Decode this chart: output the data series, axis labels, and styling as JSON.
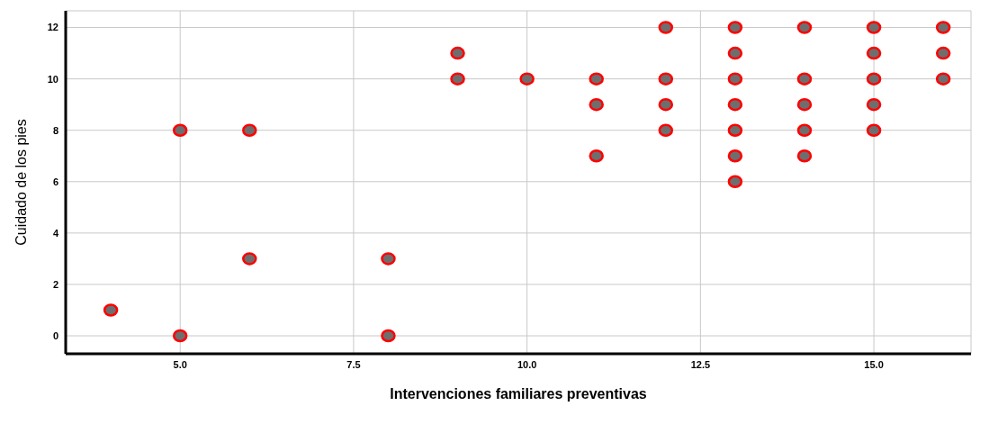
{
  "chart_data": {
    "type": "scatter",
    "xlabel": "Intervenciones familiares preventivas",
    "ylabel": "Cuidado de los pies",
    "x": [
      4,
      5,
      5,
      6,
      6,
      8,
      8,
      9,
      9,
      10,
      11,
      11,
      11,
      12,
      12,
      12,
      12,
      13,
      13,
      13,
      13,
      13,
      13,
      13,
      14,
      14,
      14,
      14,
      14,
      15,
      15,
      15,
      15,
      15,
      16,
      16,
      16
    ],
    "series": [
      {
        "color": "#ff0000",
        "values": [
          1,
          8,
          0,
          8,
          3,
          3,
          0,
          11,
          10,
          10,
          10,
          9,
          7,
          12,
          10,
          9,
          8,
          12,
          11,
          10,
          9,
          8,
          7,
          6,
          12,
          10,
          9,
          8,
          7,
          12,
          11,
          10,
          9,
          8,
          12,
          11,
          10
        ]
      }
    ],
    "xlim": [
      3.35,
      16.4
    ],
    "xticks": [
      {
        "value": 5,
        "label": "5.0"
      },
      {
        "value": 7.5,
        "label": "7.5"
      },
      {
        "value": 10,
        "label": "10.0"
      },
      {
        "value": 12.5,
        "label": "12.5"
      },
      {
        "value": 15,
        "label": "15.0"
      }
    ],
    "ylim": [
      -0.7,
      12.65
    ],
    "yticks": [
      0,
      2,
      4,
      6,
      8,
      10,
      12
    ],
    "grid": true,
    "marker": "circle"
  }
}
